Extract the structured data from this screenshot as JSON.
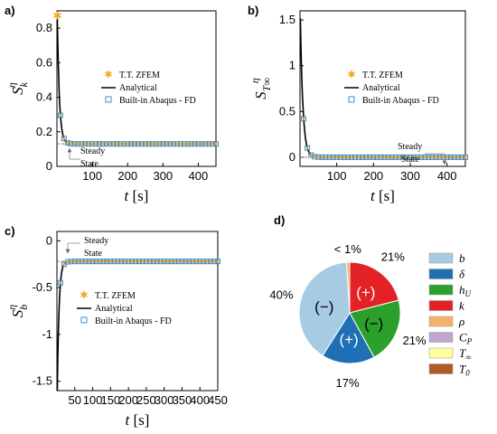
{
  "chart_data": [
    {
      "panel": "a)",
      "type": "line",
      "ylabel": "S_k^η",
      "xlabel": "t [s]",
      "xlim": [
        0,
        450
      ],
      "ylim": [
        0,
        0.9
      ],
      "xticks": [
        "100",
        "200",
        "300",
        "400"
      ],
      "yticks": [
        "0",
        "0.2",
        "0.4",
        "0.6",
        "0.8"
      ],
      "steady_value": 0.13,
      "peak_value": 0.87,
      "decay_tau": 6,
      "annotation": [
        "Steady",
        "State"
      ],
      "legend": [
        "T.T.  ZFEM",
        "Analytical",
        "Built-in Abaqus - FD"
      ],
      "series": [
        {
          "name": "T.T.  ZFEM",
          "x": [
            1
          ],
          "y": [
            0.87
          ]
        },
        {
          "name": "Analytical"
        },
        {
          "name": "Built-in Abaqus - FD"
        }
      ]
    },
    {
      "panel": "b)",
      "type": "line",
      "ylabel": "S_T∞^η",
      "xlabel": "t [s]",
      "xlim": [
        0,
        450
      ],
      "ylim": [
        -0.1,
        1.6
      ],
      "xticks": [
        "100",
        "200",
        "300",
        "400"
      ],
      "yticks": [
        "0",
        "0.5",
        "1",
        "1.5"
      ],
      "steady_value": 0.0,
      "peak_value": 1.52,
      "decay_tau": 7,
      "annotation": [
        "Steady",
        "State"
      ],
      "legend": [
        "T.T.  ZFEM",
        "Analytical",
        "Built-in Abaqus - FD"
      ],
      "series": [
        {
          "name": "T.T.  ZFEM"
        },
        {
          "name": "Analytical"
        },
        {
          "name": "Built-in Abaqus - FD"
        }
      ]
    },
    {
      "panel": "c)",
      "type": "line",
      "ylabel": "S_b^η",
      "xlabel": "t [s]",
      "xlim": [
        0,
        450
      ],
      "ylim": [
        -1.6,
        0.1
      ],
      "xticks": [
        "50",
        "100",
        "150",
        "200",
        "250",
        "300",
        "350",
        "400",
        "450"
      ],
      "yticks": [
        "0",
        "-0.5",
        "-1",
        "-1.5"
      ],
      "steady_value": -0.22,
      "peak_value": -1.6,
      "decay_tau": 5,
      "annotation": [
        "Steady",
        "State"
      ],
      "legend": [
        "T.T.  ZFEM",
        "Analytical",
        "Built-in Abaqus - FD"
      ],
      "series": [
        {
          "name": "T.T.  ZFEM"
        },
        {
          "name": "Analytical"
        },
        {
          "name": "Built-in Abaqus - FD"
        }
      ]
    },
    {
      "panel": "d)",
      "type": "pie",
      "slices": [
        {
          "label": "k",
          "value": 21,
          "pct_text": "21%",
          "sign": "(+)",
          "color": "#e32226"
        },
        {
          "label": "h_U",
          "value": 21,
          "pct_text": "21%",
          "sign": "(−)",
          "color": "#2ca02c"
        },
        {
          "label": "δ",
          "value": 17,
          "pct_text": "17%",
          "sign": "(+)",
          "color": "#1f6fb4"
        },
        {
          "label": "b",
          "value": 40,
          "pct_text": "40%",
          "sign": "(−)",
          "color": "#a6cbe2"
        },
        {
          "label": "ρ, C_P, T_∞, T_0",
          "value": 1,
          "pct_text": "< 1%",
          "sign": "",
          "color": "#f4b26a"
        }
      ],
      "legend": [
        {
          "label": "b",
          "color": "#a6cbe2"
        },
        {
          "label": "δ",
          "color": "#1f6fb4"
        },
        {
          "label": "h_U",
          "color": "#2ca02c"
        },
        {
          "label": "k",
          "color": "#e32226"
        },
        {
          "label": "ρ",
          "color": "#f4b26a"
        },
        {
          "label": "C_P",
          "color": "#c2a5cf"
        },
        {
          "label": "T_∞",
          "color": "#ffff99"
        },
        {
          "label": "T_0",
          "color": "#b15928"
        }
      ]
    }
  ],
  "colors": {
    "zfem_marker": "#f5a623",
    "analytical_line": "#000000",
    "fd_marker": "#3b8fd4",
    "steady_line": "#d9534f"
  }
}
